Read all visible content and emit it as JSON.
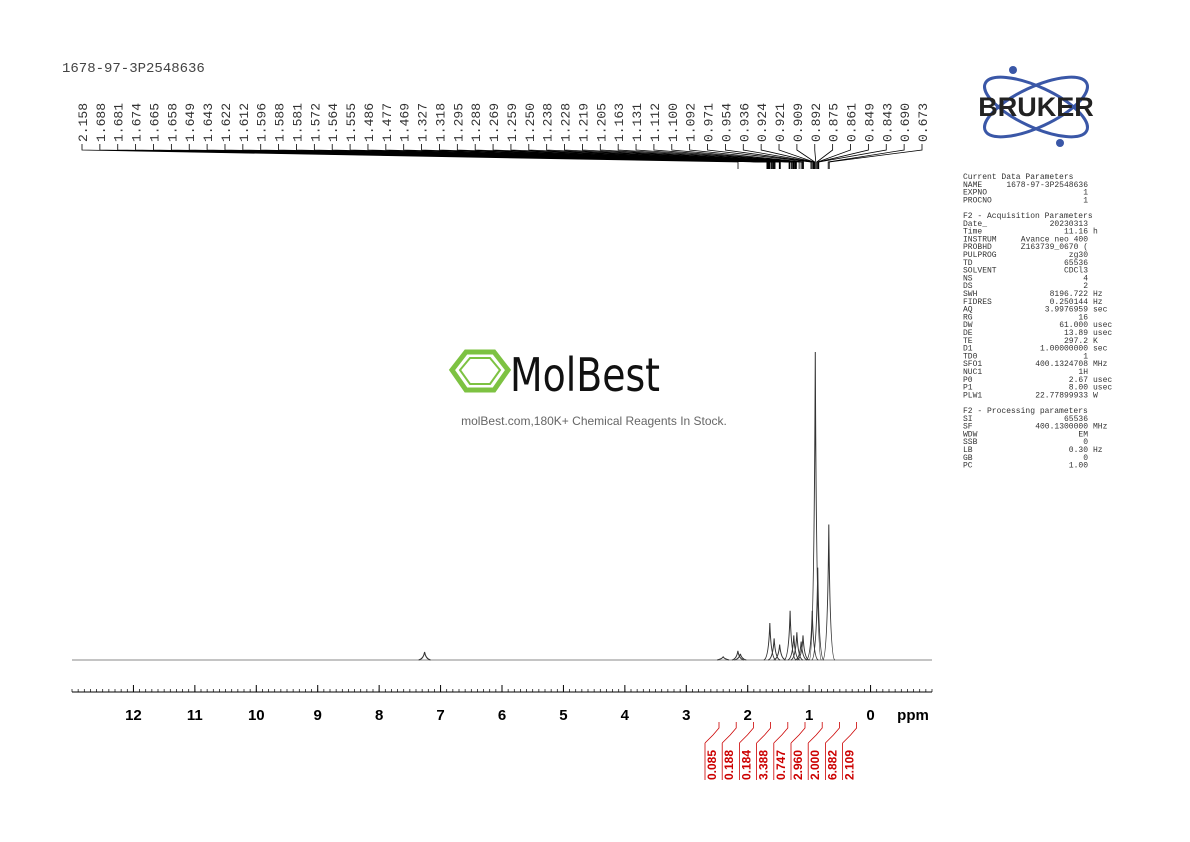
{
  "chart_data": {
    "type": "nmr",
    "title": "1678-97-3P2548636",
    "x_label": "ppm",
    "xlim": [
      13,
      -1
    ],
    "xticks": [
      12,
      11,
      10,
      9,
      8,
      7,
      6,
      5,
      4,
      3,
      2,
      1,
      0
    ],
    "ylim": [
      0,
      1
    ],
    "peak_labels": [
      "2.158",
      "1.688",
      "1.681",
      "1.674",
      "1.665",
      "1.658",
      "1.649",
      "1.643",
      "1.622",
      "1.612",
      "1.596",
      "1.588",
      "1.581",
      "1.572",
      "1.564",
      "1.555",
      "1.486",
      "1.477",
      "1.469",
      "1.327",
      "1.318",
      "1.295",
      "1.288",
      "1.269",
      "1.259",
      "1.250",
      "1.238",
      "1.228",
      "1.219",
      "1.205",
      "1.163",
      "1.131",
      "1.112",
      "1.100",
      "1.092",
      "0.971",
      "0.954",
      "0.936",
      "0.924",
      "0.921",
      "0.909",
      "0.892",
      "0.875",
      "0.861",
      "0.849",
      "0.843",
      "0.690",
      "0.673"
    ],
    "spectrum": {
      "ppm": [
        7.26,
        2.16,
        2.12,
        1.64,
        1.57,
        1.48,
        1.31,
        1.25,
        1.2,
        1.13,
        1.1,
        0.95,
        0.9,
        0.86,
        0.68,
        2.4
      ],
      "intensity": [
        0.026,
        0.03,
        0.02,
        0.12,
        0.07,
        0.05,
        0.16,
        0.08,
        0.09,
        0.06,
        0.08,
        0.16,
        1.0,
        0.3,
        0.44,
        0.01
      ]
    },
    "integrals": [
      "0.085",
      "0.188",
      "0.184",
      "3.388",
      "0.747",
      "2.960",
      "2.000",
      "6.882",
      "2.109"
    ]
  },
  "logo": "BRUKER",
  "watermark": {
    "brand": "MolBest",
    "tagline": "molBest.com,180K+ Chemical Reagents In Stock."
  },
  "parameters": [
    {
      "title": "Current Data Parameters",
      "rows": [
        [
          "NAME",
          "1678-97-3P2548636"
        ],
        [
          "EXPNO",
          "1"
        ],
        [
          "PROCNO",
          "1"
        ]
      ]
    },
    {
      "title": "F2 - Acquisition Parameters",
      "rows": [
        [
          "Date_",
          "20230313"
        ],
        [
          "Time",
          "11.16",
          "h"
        ],
        [
          "INSTRUM",
          "Avance neo 400"
        ],
        [
          "PROBHD",
          "Z163739_0670 ("
        ],
        [
          "PULPROG",
          "zg30"
        ],
        [
          "TD",
          "65536"
        ],
        [
          "SOLVENT",
          "CDCl3"
        ],
        [
          "NS",
          "4"
        ],
        [
          "DS",
          "2"
        ],
        [
          "SWH",
          "8196.722",
          "Hz"
        ],
        [
          "FIDRES",
          "0.250144",
          "Hz"
        ],
        [
          "AQ",
          "3.9976959",
          "sec"
        ],
        [
          "RG",
          "16"
        ],
        [
          "DW",
          "61.000",
          "usec"
        ],
        [
          "DE",
          "13.89",
          "usec"
        ],
        [
          "TE",
          "297.2",
          "K"
        ],
        [
          "D1",
          "1.00000000",
          "sec"
        ],
        [
          "TD0",
          "1"
        ],
        [
          "SFO1",
          "400.1324708",
          "MHz"
        ],
        [
          "NUC1",
          "1H"
        ],
        [
          "P0",
          "2.67",
          "usec"
        ],
        [
          "P1",
          "8.00",
          "usec"
        ],
        [
          "PLW1",
          "22.77899933",
          "W"
        ]
      ]
    },
    {
      "title": "F2 - Processing parameters",
      "rows": [
        [
          "SI",
          "65536"
        ],
        [
          "SF",
          "400.1300000",
          "MHz"
        ],
        [
          "WDW",
          "EM"
        ],
        [
          "SSB",
          "0"
        ],
        [
          "LB",
          "0.30",
          "Hz"
        ],
        [
          "GB",
          "0"
        ],
        [
          "PC",
          "1.00"
        ]
      ]
    }
  ]
}
